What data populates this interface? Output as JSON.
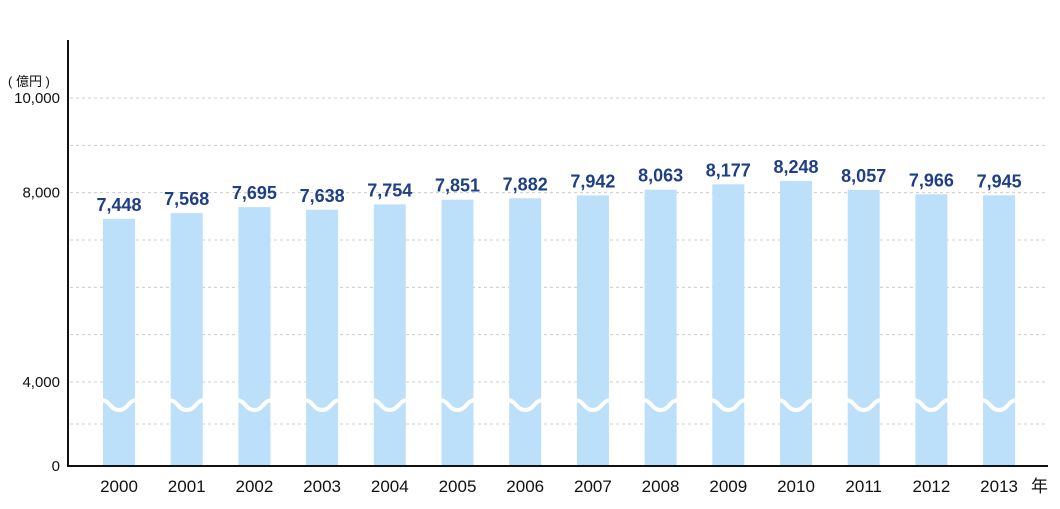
{
  "chart_data": {
    "type": "bar",
    "title": "",
    "xlabel": "",
    "ylabel": "",
    "unit_label": "( 億円 )",
    "x_unit_label": "年",
    "categories": [
      "2000",
      "2001",
      "2002",
      "2003",
      "2004",
      "2005",
      "2006",
      "2007",
      "2008",
      "2009",
      "2010",
      "2011",
      "2012",
      "2013"
    ],
    "values": [
      7448,
      7568,
      7695,
      7638,
      7754,
      7851,
      7882,
      7942,
      8063,
      8177,
      8248,
      8057,
      7966,
      7945
    ],
    "value_labels": [
      "7,448",
      "7,568",
      "7,695",
      "7,638",
      "7,754",
      "7,851",
      "7,882",
      "7,942",
      "8,063",
      "8,177",
      "8,248",
      "8,057",
      "7,966",
      "7,945"
    ],
    "y_ticks": [
      0,
      4000,
      8000,
      10000
    ],
    "y_tick_labels": [
      "0",
      "4,000",
      "8,000",
      "10,000"
    ],
    "ylim": [
      0,
      10000
    ],
    "axis_break": true,
    "grid": true,
    "colors": {
      "bar": "#bcdffa",
      "data_label": "#1f3f86",
      "axis": "#111111",
      "grid": "#cccccc"
    }
  }
}
